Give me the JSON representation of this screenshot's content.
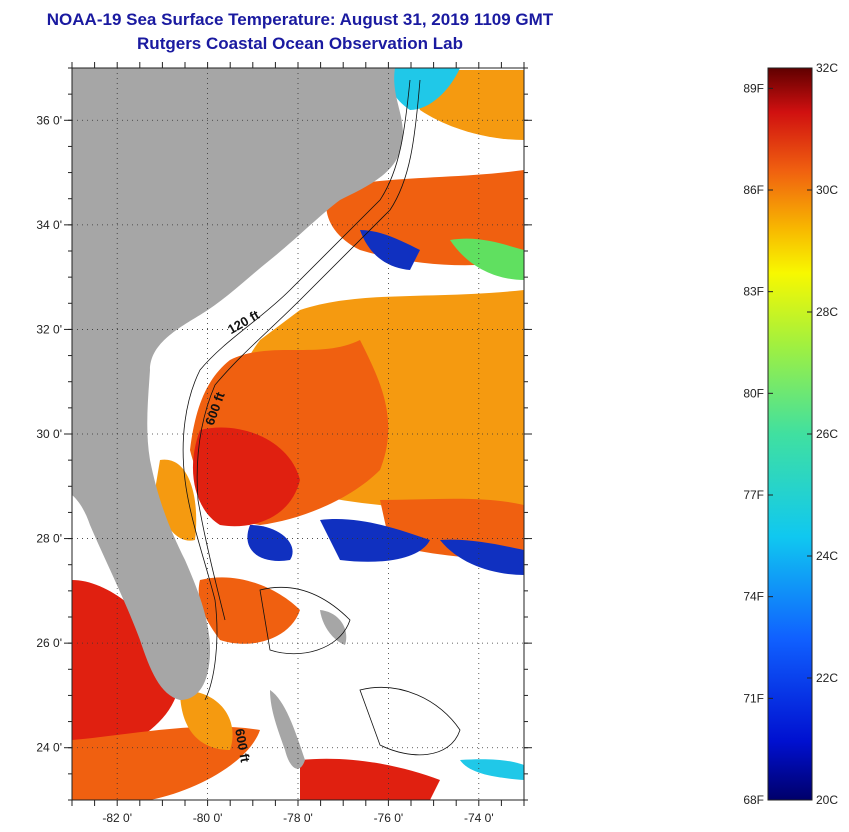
{
  "title": "NOAA-19 Sea Surface Temperature:  August 31, 2019 1109 GMT",
  "subtitle": "Rutgers Coastal Ocean Observation Lab",
  "map": {
    "lon_range": [
      -83,
      -73
    ],
    "lat_range": [
      23,
      37
    ],
    "lat_labels": [
      {
        "value": 36,
        "label": "36 0'"
      },
      {
        "value": 34,
        "label": "34 0'"
      },
      {
        "value": 32,
        "label": "32 0'"
      },
      {
        "value": 30,
        "label": "30 0'"
      },
      {
        "value": 28,
        "label": "28 0'"
      },
      {
        "value": 26,
        "label": "26 0'"
      },
      {
        "value": 24,
        "label": "24 0'"
      }
    ],
    "lon_labels": [
      {
        "value": -82,
        "label": "-82 0'"
      },
      {
        "value": -80,
        "label": "-80 0'"
      },
      {
        "value": -78,
        "label": "-78 0'"
      },
      {
        "value": -76,
        "label": "-76 0'"
      },
      {
        "value": -74,
        "label": "-74 0'"
      }
    ],
    "contour_labels": [
      "120 ft",
      "600 ft",
      "600 ft"
    ],
    "colors": {
      "land": "#a6a6a6",
      "cloud": "#ffffff",
      "warm": "#f06010",
      "hot": "#e02010",
      "orange": "#f59a10",
      "cold": "#1030c0",
      "cyan": "#20c8e8",
      "green": "#60e060"
    }
  },
  "colorbar": {
    "fahrenheit_labels": [
      "89F",
      "86F",
      "83F",
      "80F",
      "77F",
      "74F",
      "71F",
      "68F"
    ],
    "celsius_labels": [
      "32C",
      "30C",
      "28C",
      "26C",
      "24C",
      "22C",
      "20C"
    ],
    "range_c": [
      20,
      32
    ]
  }
}
